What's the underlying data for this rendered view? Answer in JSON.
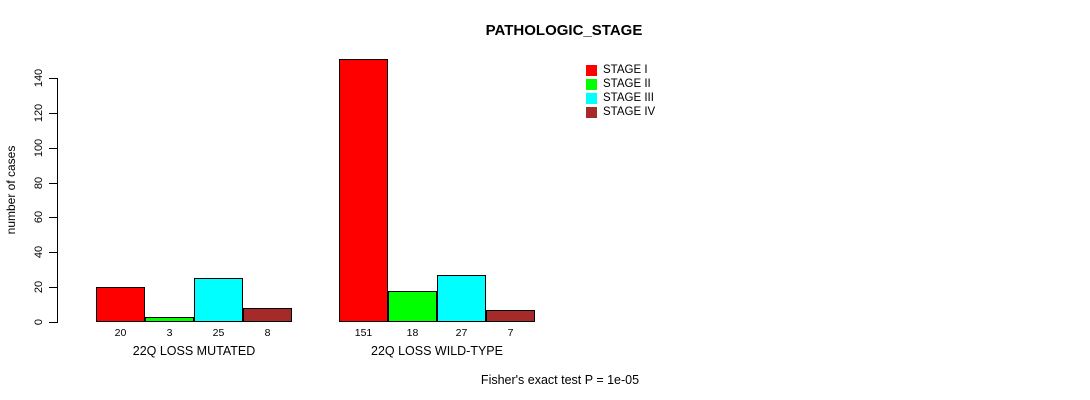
{
  "chart_data": {
    "type": "bar",
    "title": "PATHOLOGIC_STAGE",
    "ylabel": "number of cases",
    "xlabel": "",
    "footer": "Fisher's exact test P = 1e-05",
    "ylim": [
      0,
      155
    ],
    "yticks": [
      0,
      20,
      40,
      60,
      80,
      100,
      120,
      140
    ],
    "grid": false,
    "legend_position": "top-right",
    "bar_value_labels": true,
    "categories": [
      "22Q LOSS MUTATED",
      "22Q LOSS WILD-TYPE"
    ],
    "series": [
      {
        "name": "STAGE I",
        "color": "#ff0000",
        "values": [
          20,
          151
        ]
      },
      {
        "name": "STAGE II",
        "color": "#00ff00",
        "values": [
          3,
          18
        ]
      },
      {
        "name": "STAGE III",
        "color": "#00ffff",
        "values": [
          25,
          27
        ]
      },
      {
        "name": "STAGE IV",
        "color": "#a52a2a",
        "values": [
          8,
          7
        ]
      }
    ]
  }
}
